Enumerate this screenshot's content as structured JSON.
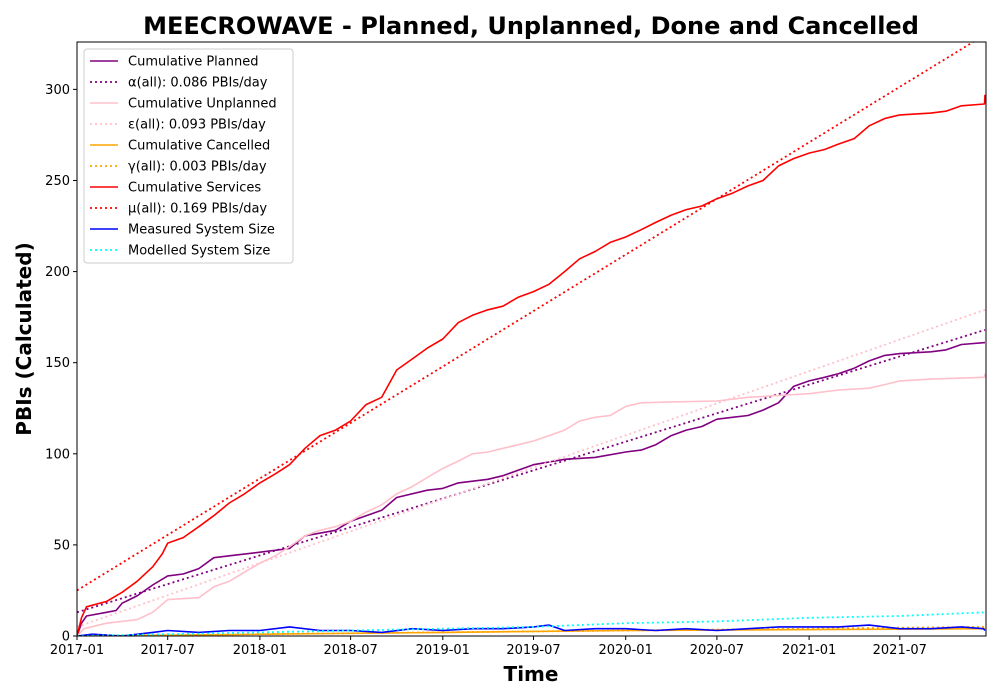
{
  "chart_data": {
    "type": "line",
    "title": "MEECROWAVE - Planned, Unplanned, Done  and Cancelled",
    "xlabel": "Time",
    "ylabel": "PBIs (Calculated)",
    "xlim": [
      "2017-01-01",
      "2021-12-20"
    ],
    "ylim": [
      0,
      326
    ],
    "x_ticks": [
      "2017-01",
      "2017-07",
      "2018-01",
      "2018-07",
      "2019-01",
      "2019-07",
      "2020-01",
      "2020-07",
      "2021-01",
      "2021-07"
    ],
    "y_ticks": [
      0,
      50,
      100,
      150,
      200,
      250,
      300
    ],
    "grid": false,
    "legend_placement": "top-left",
    "series": [
      {
        "name": "Cumulative Planned",
        "color": "#800080",
        "style": "solid",
        "points": [
          [
            "2017-01-01",
            0
          ],
          [
            "2017-01-10",
            7
          ],
          [
            "2017-01-20",
            11
          ],
          [
            "2017-03-01",
            13
          ],
          [
            "2017-03-20",
            14
          ],
          [
            "2017-04-01",
            18
          ],
          [
            "2017-05-01",
            22
          ],
          [
            "2017-06-01",
            28
          ],
          [
            "2017-07-01",
            33
          ],
          [
            "2017-08-01",
            34
          ],
          [
            "2017-09-01",
            37
          ],
          [
            "2017-10-01",
            43
          ],
          [
            "2017-11-01",
            44
          ],
          [
            "2018-01-01",
            46
          ],
          [
            "2018-03-01",
            48
          ],
          [
            "2018-04-01",
            55
          ],
          [
            "2018-06-01",
            58
          ],
          [
            "2018-07-01",
            63
          ],
          [
            "2018-09-01",
            69
          ],
          [
            "2018-10-01",
            76
          ],
          [
            "2018-12-01",
            80
          ],
          [
            "2019-01-01",
            81
          ],
          [
            "2019-02-01",
            84
          ],
          [
            "2019-04-01",
            86
          ],
          [
            "2019-05-01",
            88
          ],
          [
            "2019-07-01",
            94
          ],
          [
            "2019-09-01",
            97
          ],
          [
            "2019-11-01",
            98
          ],
          [
            "2020-01-01",
            101
          ],
          [
            "2020-02-01",
            102
          ],
          [
            "2020-03-01",
            105
          ],
          [
            "2020-04-01",
            110
          ],
          [
            "2020-05-01",
            113
          ],
          [
            "2020-06-01",
            115
          ],
          [
            "2020-07-01",
            119
          ],
          [
            "2020-08-01",
            120
          ],
          [
            "2020-09-01",
            121
          ],
          [
            "2020-10-01",
            124
          ],
          [
            "2020-11-01",
            128
          ],
          [
            "2020-12-01",
            137
          ],
          [
            "2021-01-01",
            140
          ],
          [
            "2021-02-01",
            142
          ],
          [
            "2021-03-01",
            144
          ],
          [
            "2021-04-01",
            147
          ],
          [
            "2021-05-01",
            151
          ],
          [
            "2021-06-01",
            154
          ],
          [
            "2021-07-01",
            155
          ],
          [
            "2021-09-01",
            156
          ],
          [
            "2021-10-01",
            157
          ],
          [
            "2021-11-01",
            160
          ],
          [
            "2021-12-18",
            161
          ]
        ]
      },
      {
        "name": "α(all): 0.086 PBIs/day",
        "color": "#800080",
        "style": "dotted",
        "points": [
          [
            "2017-01-01",
            13
          ],
          [
            "2021-12-18",
            168
          ]
        ]
      },
      {
        "name": "Cumulative Unplanned",
        "color": "#ffc0cb",
        "style": "solid",
        "points": [
          [
            "2017-01-01",
            0
          ],
          [
            "2017-01-15",
            4
          ],
          [
            "2017-03-01",
            7
          ],
          [
            "2017-05-01",
            9
          ],
          [
            "2017-06-01",
            13
          ],
          [
            "2017-07-01",
            20
          ],
          [
            "2017-09-01",
            21
          ],
          [
            "2017-10-01",
            27
          ],
          [
            "2017-11-01",
            30
          ],
          [
            "2017-12-01",
            35
          ],
          [
            "2018-01-01",
            40
          ],
          [
            "2018-02-01",
            44
          ],
          [
            "2018-03-01",
            49
          ],
          [
            "2018-04-01",
            55
          ],
          [
            "2018-05-01",
            58
          ],
          [
            "2018-06-01",
            60
          ],
          [
            "2018-07-01",
            63
          ],
          [
            "2018-08-01",
            68
          ],
          [
            "2018-09-01",
            72
          ],
          [
            "2018-10-01",
            78
          ],
          [
            "2018-11-01",
            82
          ],
          [
            "2018-12-01",
            87
          ],
          [
            "2019-01-01",
            92
          ],
          [
            "2019-02-01",
            96
          ],
          [
            "2019-03-01",
            100
          ],
          [
            "2019-04-01",
            101
          ],
          [
            "2019-05-01",
            103
          ],
          [
            "2019-06-01",
            105
          ],
          [
            "2019-07-01",
            107
          ],
          [
            "2019-08-01",
            110
          ],
          [
            "2019-09-01",
            113
          ],
          [
            "2019-10-01",
            118
          ],
          [
            "2019-11-01",
            120
          ],
          [
            "2019-12-01",
            121
          ],
          [
            "2020-01-01",
            126
          ],
          [
            "2020-02-01",
            128
          ],
          [
            "2020-04-01",
            128.5
          ],
          [
            "2020-07-01",
            129
          ],
          [
            "2020-09-01",
            131
          ],
          [
            "2020-11-01",
            132
          ],
          [
            "2021-01-01",
            133
          ],
          [
            "2021-03-01",
            135
          ],
          [
            "2021-05-01",
            136
          ],
          [
            "2021-06-01",
            138
          ],
          [
            "2021-07-01",
            140
          ],
          [
            "2021-09-01",
            141
          ],
          [
            "2021-12-17",
            142
          ],
          [
            "2021-12-18",
            144
          ]
        ]
      },
      {
        "name": "ε(all): 0.093 PBIs/day",
        "color": "#ffc0cb",
        "style": "dotted",
        "points": [
          [
            "2017-01-01",
            5
          ],
          [
            "2021-12-18",
            179
          ]
        ]
      },
      {
        "name": "Cumulative Cancelled",
        "color": "#ffa500",
        "style": "solid",
        "points": [
          [
            "2017-01-01",
            0
          ],
          [
            "2018-01-01",
            1
          ],
          [
            "2019-01-01",
            2
          ],
          [
            "2020-01-01",
            3
          ],
          [
            "2021-12-18",
            4
          ]
        ]
      },
      {
        "name": "γ(all): 0.003 PBIs/day",
        "color": "#ffa500",
        "style": "dotted",
        "points": [
          [
            "2017-01-01",
            0
          ],
          [
            "2021-12-18",
            5
          ]
        ]
      },
      {
        "name": "Cumulative Services",
        "color": "#ff0000",
        "style": "solid",
        "points": [
          [
            "2017-01-01",
            0
          ],
          [
            "2017-01-10",
            10
          ],
          [
            "2017-01-20",
            16
          ],
          [
            "2017-03-01",
            19
          ],
          [
            "2017-04-01",
            24
          ],
          [
            "2017-05-01",
            30
          ],
          [
            "2017-06-01",
            38
          ],
          [
            "2017-06-20",
            45
          ],
          [
            "2017-07-01",
            51
          ],
          [
            "2017-08-01",
            54
          ],
          [
            "2017-09-01",
            60
          ],
          [
            "2017-10-01",
            66
          ],
          [
            "2017-11-01",
            73
          ],
          [
            "2017-12-01",
            78
          ],
          [
            "2018-01-01",
            84
          ],
          [
            "2018-02-01",
            89
          ],
          [
            "2018-03-01",
            94
          ],
          [
            "2018-04-01",
            103
          ],
          [
            "2018-05-01",
            110
          ],
          [
            "2018-06-01",
            113
          ],
          [
            "2018-07-01",
            118
          ],
          [
            "2018-08-01",
            127
          ],
          [
            "2018-09-01",
            131
          ],
          [
            "2018-10-01",
            146
          ],
          [
            "2018-11-01",
            152
          ],
          [
            "2018-12-01",
            158
          ],
          [
            "2019-01-01",
            163
          ],
          [
            "2019-02-01",
            172
          ],
          [
            "2019-03-01",
            176
          ],
          [
            "2019-04-01",
            179
          ],
          [
            "2019-05-01",
            181
          ],
          [
            "2019-06-01",
            186
          ],
          [
            "2019-07-01",
            189
          ],
          [
            "2019-08-01",
            193
          ],
          [
            "2019-09-01",
            200
          ],
          [
            "2019-10-01",
            207
          ],
          [
            "2019-11-01",
            211
          ],
          [
            "2019-12-01",
            216
          ],
          [
            "2020-01-01",
            219
          ],
          [
            "2020-02-01",
            223
          ],
          [
            "2020-03-01",
            227
          ],
          [
            "2020-04-01",
            231
          ],
          [
            "2020-05-01",
            234
          ],
          [
            "2020-06-01",
            236
          ],
          [
            "2020-07-01",
            240
          ],
          [
            "2020-08-01",
            243
          ],
          [
            "2020-09-01",
            247
          ],
          [
            "2020-10-01",
            250
          ],
          [
            "2020-11-01",
            258
          ],
          [
            "2020-12-01",
            262
          ],
          [
            "2021-01-01",
            265
          ],
          [
            "2021-02-01",
            267
          ],
          [
            "2021-03-01",
            270
          ],
          [
            "2021-04-01",
            273
          ],
          [
            "2021-05-01",
            280
          ],
          [
            "2021-06-01",
            284
          ],
          [
            "2021-07-01",
            286
          ],
          [
            "2021-09-01",
            287
          ],
          [
            "2021-10-01",
            288
          ],
          [
            "2021-11-01",
            291
          ],
          [
            "2021-12-17",
            292
          ],
          [
            "2021-12-18",
            297
          ]
        ]
      },
      {
        "name": "μ(all): 0.169 PBIs/day",
        "color": "#ff0000",
        "style": "dotted",
        "points": [
          [
            "2017-01-01",
            25
          ],
          [
            "2021-12-18",
            330
          ]
        ]
      },
      {
        "name": "Measured System Size",
        "color": "#0000ff",
        "style": "solid",
        "points": [
          [
            "2017-01-01",
            0
          ],
          [
            "2017-02-01",
            1
          ],
          [
            "2017-04-01",
            0
          ],
          [
            "2017-06-01",
            2
          ],
          [
            "2017-07-01",
            3
          ],
          [
            "2017-09-01",
            2
          ],
          [
            "2017-11-01",
            3
          ],
          [
            "2018-01-01",
            3
          ],
          [
            "2018-03-01",
            5
          ],
          [
            "2018-05-01",
            3
          ],
          [
            "2018-07-01",
            3
          ],
          [
            "2018-09-01",
            2
          ],
          [
            "2018-11-01",
            4
          ],
          [
            "2019-01-01",
            3
          ],
          [
            "2019-03-01",
            4
          ],
          [
            "2019-05-01",
            4
          ],
          [
            "2019-07-01",
            5
          ],
          [
            "2019-08-01",
            6
          ],
          [
            "2019-09-01",
            3
          ],
          [
            "2019-11-01",
            4
          ],
          [
            "2020-01-01",
            4
          ],
          [
            "2020-03-01",
            3
          ],
          [
            "2020-05-01",
            4
          ],
          [
            "2020-07-01",
            3
          ],
          [
            "2020-09-01",
            4
          ],
          [
            "2020-11-01",
            5
          ],
          [
            "2021-01-01",
            5
          ],
          [
            "2021-03-01",
            5
          ],
          [
            "2021-05-01",
            6
          ],
          [
            "2021-07-01",
            4
          ],
          [
            "2021-09-01",
            4
          ],
          [
            "2021-11-01",
            5
          ],
          [
            "2021-12-15",
            4
          ],
          [
            "2021-12-18",
            3
          ]
        ]
      },
      {
        "name": "Modelled System Size",
        "color": "#00ffff",
        "style": "dotted",
        "points": [
          [
            "2017-01-01",
            0
          ],
          [
            "2017-07-01",
            1
          ],
          [
            "2018-01-01",
            2
          ],
          [
            "2018-07-01",
            3
          ],
          [
            "2019-01-01",
            4
          ],
          [
            "2019-07-01",
            5
          ],
          [
            "2020-01-01",
            7
          ],
          [
            "2020-07-01",
            8
          ],
          [
            "2020-10-01",
            9
          ],
          [
            "2021-01-01",
            10
          ],
          [
            "2021-07-01",
            11
          ],
          [
            "2021-12-18",
            13
          ]
        ]
      }
    ]
  }
}
